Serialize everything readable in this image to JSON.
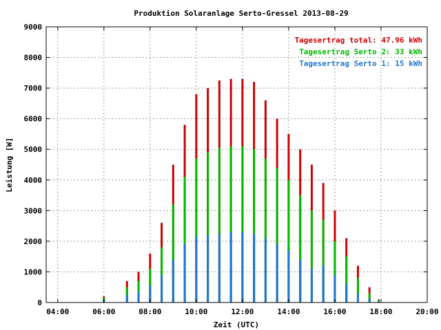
{
  "chart_data": {
    "type": "bar",
    "title": "Produktion Solaranlage Serto-Gressel 2013-08-29",
    "xlabel": "Zeit (UTC)",
    "ylabel": "Leistung [W]",
    "xlim": [
      3.5,
      20.0
    ],
    "ylim": [
      0,
      9000
    ],
    "grid": true,
    "legend_placement": "top-right",
    "x_ticks": [
      "04:00",
      "06:00",
      "08:00",
      "10:00",
      "12:00",
      "14:00",
      "16:00",
      "18:00",
      "20:00"
    ],
    "y_ticks": [
      "0",
      "1000",
      "2000",
      "3000",
      "4000",
      "5000",
      "6000",
      "7000",
      "8000",
      "9000"
    ],
    "series": [
      {
        "name": "Tagesertrag total: 47.96 kWh",
        "color": "#cc0000",
        "x": [
          6.0,
          7.0,
          7.5,
          8.0,
          8.5,
          9.0,
          9.5,
          10.0,
          10.5,
          11.0,
          11.5,
          12.0,
          12.5,
          13.0,
          13.5,
          14.0,
          14.5,
          15.0,
          15.5,
          16.0,
          16.5,
          17.0,
          17.5,
          17.9
        ],
        "values": [
          200,
          700,
          1000,
          1600,
          2600,
          4500,
          5800,
          6800,
          7000,
          7250,
          7300,
          7300,
          7200,
          6600,
          6000,
          5500,
          5000,
          4500,
          3900,
          3000,
          2100,
          1200,
          500,
          100
        ]
      },
      {
        "name": "Tagesertrag Serto 2: 33 kWh",
        "color": "#00bb00",
        "x": [
          6.0,
          7.0,
          7.5,
          8.0,
          8.5,
          9.0,
          9.5,
          10.0,
          10.5,
          11.0,
          11.5,
          12.0,
          12.5,
          13.0,
          13.5,
          14.0,
          14.5,
          15.0,
          15.5,
          16.0,
          16.5,
          17.0,
          17.5,
          17.9
        ],
        "values": [
          150,
          500,
          700,
          1100,
          1800,
          3200,
          4100,
          4700,
          4900,
          5050,
          5100,
          5100,
          5000,
          4700,
          4400,
          4000,
          3500,
          3000,
          2700,
          2000,
          1500,
          800,
          300,
          80
        ]
      },
      {
        "name": "Tagesertrag Serto 1: 15 kWh",
        "color": "#1f77d0",
        "x": [
          6.0,
          7.0,
          7.5,
          8.0,
          8.5,
          9.0,
          9.5,
          10.0,
          10.5,
          11.0,
          11.5,
          12.0,
          12.5,
          13.0,
          13.5,
          14.0,
          14.5,
          15.0,
          15.5,
          16.0,
          16.5,
          17.0,
          17.5,
          17.9
        ],
        "values": [
          80,
          250,
          350,
          550,
          900,
          1400,
          1900,
          2150,
          2200,
          2250,
          2300,
          2300,
          2250,
          2100,
          1900,
          1700,
          1400,
          1100,
          1200,
          900,
          600,
          300,
          120,
          30
        ]
      }
    ]
  }
}
